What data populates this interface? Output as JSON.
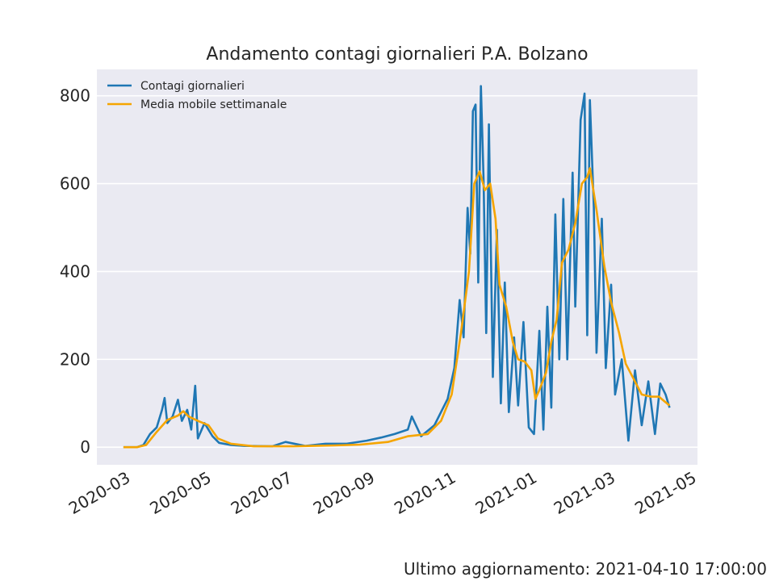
{
  "chart_data": {
    "type": "line",
    "title": "Andamento contagi giornalieri P.A. Bolzano",
    "xlabel": "",
    "ylabel": "",
    "x_range": [
      "2020-02-04",
      "2021-05-01"
    ],
    "ylim": [
      -40,
      860
    ],
    "x_ticks": [
      "2020-03",
      "2020-05",
      "2020-07",
      "2020-09",
      "2020-11",
      "2021-01",
      "2021-03",
      "2021-05"
    ],
    "y_ticks": [
      0,
      200,
      400,
      600,
      800
    ],
    "grid": true,
    "legend": "top-left",
    "series": [
      {
        "name": "Contagi giornalieri",
        "color": "#1f77b4",
        "points": [
          [
            "2020-02-24",
            0
          ],
          [
            "2020-03-05",
            0
          ],
          [
            "2020-03-10",
            5
          ],
          [
            "2020-03-15",
            30
          ],
          [
            "2020-03-20",
            45
          ],
          [
            "2020-03-24",
            85
          ],
          [
            "2020-03-26",
            112
          ],
          [
            "2020-03-28",
            55
          ],
          [
            "2020-04-01",
            70
          ],
          [
            "2020-04-05",
            108
          ],
          [
            "2020-04-08",
            60
          ],
          [
            "2020-04-12",
            85
          ],
          [
            "2020-04-15",
            40
          ],
          [
            "2020-04-18",
            140
          ],
          [
            "2020-04-20",
            20
          ],
          [
            "2020-04-25",
            55
          ],
          [
            "2020-05-01",
            25
          ],
          [
            "2020-05-06",
            10
          ],
          [
            "2020-05-15",
            5
          ],
          [
            "2020-05-25",
            3
          ],
          [
            "2020-06-15",
            2
          ],
          [
            "2020-06-25",
            12
          ],
          [
            "2020-07-10",
            3
          ],
          [
            "2020-07-25",
            8
          ],
          [
            "2020-08-10",
            8
          ],
          [
            "2020-08-25",
            15
          ],
          [
            "2020-09-05",
            22
          ],
          [
            "2020-09-15",
            30
          ],
          [
            "2020-09-25",
            40
          ],
          [
            "2020-09-28",
            70
          ],
          [
            "2020-10-05",
            25
          ],
          [
            "2020-10-15",
            50
          ],
          [
            "2020-10-25",
            110
          ],
          [
            "2020-10-30",
            180
          ],
          [
            "2020-11-03",
            335
          ],
          [
            "2020-11-06",
            250
          ],
          [
            "2020-11-09",
            545
          ],
          [
            "2020-11-11",
            440
          ],
          [
            "2020-11-13",
            765
          ],
          [
            "2020-11-15",
            780
          ],
          [
            "2020-11-17",
            375
          ],
          [
            "2020-11-19",
            822
          ],
          [
            "2020-11-21",
            610
          ],
          [
            "2020-11-23",
            260
          ],
          [
            "2020-11-25",
            735
          ],
          [
            "2020-11-28",
            160
          ],
          [
            "2020-12-01",
            495
          ],
          [
            "2020-12-04",
            100
          ],
          [
            "2020-12-07",
            375
          ],
          [
            "2020-12-10",
            80
          ],
          [
            "2020-12-14",
            250
          ],
          [
            "2020-12-17",
            95
          ],
          [
            "2020-12-21",
            285
          ],
          [
            "2020-12-25",
            45
          ],
          [
            "2020-12-29",
            30
          ],
          [
            "2021-01-02",
            265
          ],
          [
            "2021-01-05",
            40
          ],
          [
            "2021-01-08",
            320
          ],
          [
            "2021-01-11",
            90
          ],
          [
            "2021-01-14",
            530
          ],
          [
            "2021-01-17",
            200
          ],
          [
            "2021-01-20",
            565
          ],
          [
            "2021-01-23",
            200
          ],
          [
            "2021-01-27",
            625
          ],
          [
            "2021-01-29",
            320
          ],
          [
            "2021-02-02",
            745
          ],
          [
            "2021-02-05",
            805
          ],
          [
            "2021-02-07",
            255
          ],
          [
            "2021-02-09",
            790
          ],
          [
            "2021-02-12",
            545
          ],
          [
            "2021-02-14",
            215
          ],
          [
            "2021-02-18",
            520
          ],
          [
            "2021-02-21",
            180
          ],
          [
            "2021-02-25",
            370
          ],
          [
            "2021-02-28",
            120
          ],
          [
            "2021-03-05",
            200
          ],
          [
            "2021-03-10",
            15
          ],
          [
            "2021-03-15",
            175
          ],
          [
            "2021-03-20",
            50
          ],
          [
            "2021-03-25",
            150
          ],
          [
            "2021-03-30",
            30
          ],
          [
            "2021-04-03",
            145
          ],
          [
            "2021-04-07",
            120
          ],
          [
            "2021-04-10",
            90
          ]
        ]
      },
      {
        "name": "Media mobile settimanale",
        "color": "#f5a500",
        "points": [
          [
            "2020-02-24",
            0
          ],
          [
            "2020-03-05",
            0
          ],
          [
            "2020-03-12",
            5
          ],
          [
            "2020-03-20",
            35
          ],
          [
            "2020-03-28",
            62
          ],
          [
            "2020-04-05",
            72
          ],
          [
            "2020-04-09",
            82
          ],
          [
            "2020-04-13",
            70
          ],
          [
            "2020-04-20",
            60
          ],
          [
            "2020-04-28",
            50
          ],
          [
            "2020-05-05",
            20
          ],
          [
            "2020-05-15",
            8
          ],
          [
            "2020-06-01",
            2
          ],
          [
            "2020-07-01",
            2
          ],
          [
            "2020-08-01",
            4
          ],
          [
            "2020-08-20",
            6
          ],
          [
            "2020-09-10",
            12
          ],
          [
            "2020-09-25",
            25
          ],
          [
            "2020-10-10",
            30
          ],
          [
            "2020-10-20",
            60
          ],
          [
            "2020-10-28",
            120
          ],
          [
            "2020-11-04",
            260
          ],
          [
            "2020-11-10",
            400
          ],
          [
            "2020-11-14",
            600
          ],
          [
            "2020-11-18",
            628
          ],
          [
            "2020-11-22",
            585
          ],
          [
            "2020-11-26",
            600
          ],
          [
            "2020-11-30",
            520
          ],
          [
            "2020-12-03",
            370
          ],
          [
            "2020-12-08",
            320
          ],
          [
            "2020-12-13",
            240
          ],
          [
            "2020-12-17",
            200
          ],
          [
            "2020-12-22",
            195
          ],
          [
            "2020-12-27",
            175
          ],
          [
            "2020-12-30",
            110
          ],
          [
            "2021-01-02",
            130
          ],
          [
            "2021-01-07",
            170
          ],
          [
            "2021-01-11",
            240
          ],
          [
            "2021-01-15",
            290
          ],
          [
            "2021-01-19",
            420
          ],
          [
            "2021-01-24",
            450
          ],
          [
            "2021-01-29",
            510
          ],
          [
            "2021-02-03",
            600
          ],
          [
            "2021-02-07",
            615
          ],
          [
            "2021-02-09",
            635
          ],
          [
            "2021-02-14",
            540
          ],
          [
            "2021-02-20",
            410
          ],
          [
            "2021-02-25",
            330
          ],
          [
            "2021-03-03",
            260
          ],
          [
            "2021-03-08",
            190
          ],
          [
            "2021-03-14",
            155
          ],
          [
            "2021-03-20",
            120
          ],
          [
            "2021-03-27",
            115
          ],
          [
            "2021-04-02",
            115
          ],
          [
            "2021-04-06",
            105
          ],
          [
            "2021-04-10",
            95
          ]
        ]
      }
    ]
  },
  "footer": {
    "update_text": "Ultimo aggiornamento: 2021-04-10 17:00:00"
  }
}
